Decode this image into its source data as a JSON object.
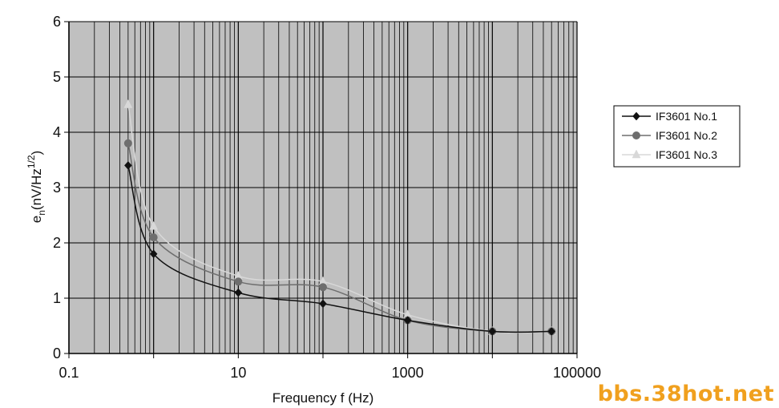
{
  "chart_data": {
    "type": "line",
    "title": "",
    "xlabel": "Frequency f (Hz)",
    "ylabel": {
      "base": "e",
      "sub": "n",
      "mid": "(nV/Hz",
      "sup": "1/2",
      "end": ")"
    },
    "xscale": "log",
    "xlim": [
      0.1,
      100000
    ],
    "ylim": [
      0,
      6
    ],
    "xticks": [
      "0.1",
      "10",
      "1000",
      "100000"
    ],
    "yticks": [
      "0",
      "1",
      "2",
      "3",
      "4",
      "5",
      "6"
    ],
    "grid": true,
    "legend_position": "right",
    "series": [
      {
        "name": "IF3601 No.1",
        "marker": "diamond",
        "color": "#111111",
        "x": [
          0.5,
          1,
          10,
          100,
          1000,
          10000,
          50000
        ],
        "y": [
          3.4,
          1.8,
          1.1,
          0.9,
          0.6,
          0.4,
          0.4
        ]
      },
      {
        "name": "IF3601 No.2",
        "marker": "circle",
        "color": "#6e6e6e",
        "x": [
          0.5,
          1,
          10,
          100,
          1000,
          10000,
          50000
        ],
        "y": [
          3.8,
          2.1,
          1.3,
          1.2,
          0.6,
          0.4,
          0.4
        ]
      },
      {
        "name": "IF3601 No.3",
        "marker": "triangle",
        "color": "#d8d8d8",
        "x": [
          0.5,
          1,
          10,
          100,
          1000,
          10000,
          50000
        ],
        "y": [
          4.5,
          2.3,
          1.4,
          1.3,
          0.7,
          0.4,
          0.4
        ]
      }
    ]
  },
  "watermark": "bbs.38hot.net",
  "colors": {
    "plot_background": "#c0c0c0",
    "grid": "#000000"
  }
}
